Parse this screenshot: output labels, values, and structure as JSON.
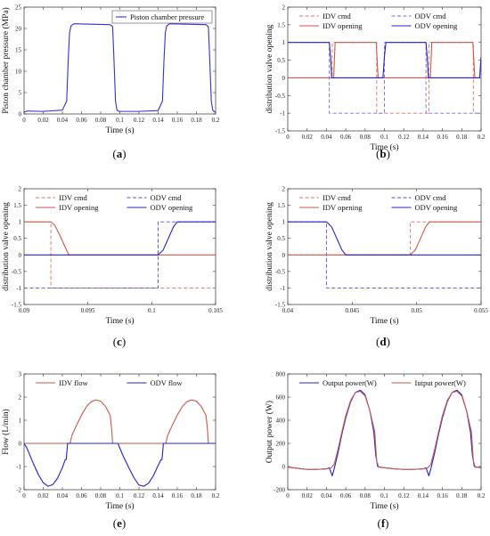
{
  "chart_data": [
    {
      "panel": "(a)",
      "type": "line",
      "xlabel": "Time (s)",
      "ylabel": "Piston chamber pressure (MPa)",
      "xlim": [
        0,
        0.2
      ],
      "ylim": [
        0,
        25
      ],
      "xticks": [
        "0",
        "0.02",
        "0.04",
        "0.06",
        "0.08",
        "0.1",
        "0.12",
        "0.14",
        "0.16",
        "0.18",
        "0.2"
      ],
      "yticks": [
        "0",
        "5",
        "10",
        "15",
        "20",
        "25"
      ],
      "legend": "top-right",
      "series": [
        {
          "name": "Piston chamber pressure",
          "color": "#3333cc",
          "style": "solid",
          "x": [
            0,
            0.003,
            0.02,
            0.04,
            0.0445,
            0.046,
            0.0475,
            0.049,
            0.052,
            0.07,
            0.09,
            0.0925,
            0.094,
            0.0955,
            0.097,
            0.099,
            0.12,
            0.14,
            0.1445,
            0.146,
            0.1475,
            0.149,
            0.152,
            0.17,
            0.19,
            0.1925,
            0.194,
            0.1955,
            0.197,
            0.2
          ],
          "y": [
            0.4,
            0.7,
            0.6,
            0.9,
            3,
            12,
            19,
            20.6,
            21.1,
            21,
            20.9,
            20.4,
            12,
            3,
            0.9,
            0.6,
            0.6,
            0.8,
            3,
            12,
            19,
            20.6,
            21.1,
            21,
            20.9,
            20.4,
            12,
            3,
            0.9,
            0.3
          ]
        }
      ]
    },
    {
      "panel": "(b)",
      "type": "line",
      "xlabel": "Time (s)",
      "ylabel": "distribution valve opening",
      "xlim": [
        0,
        0.2
      ],
      "ylim": [
        -1.5,
        2
      ],
      "xticks": [
        "0",
        "0.02",
        "0.04",
        "0.06",
        "0.08",
        "0.1",
        "0.12",
        "0.14",
        "0.16",
        "0.18",
        "0.2"
      ],
      "yticks": [
        "-1.5",
        "-1",
        "-0.5",
        "0",
        "0.5",
        "1",
        "1.5",
        "2"
      ],
      "legend": "top (2 columns)",
      "series": [
        {
          "name": "IDV cmd",
          "color": "#e0706a",
          "style": "dashed",
          "x": [
            0,
            0.046,
            0.046,
            0.092,
            0.092,
            0.146,
            0.146,
            0.192,
            0.192,
            0.2
          ],
          "y": [
            0,
            0,
            1,
            1,
            -1,
            -1,
            1,
            1,
            -1,
            -1
          ]
        },
        {
          "name": "ODV cmd",
          "color": "#7070dd",
          "style": "dashed",
          "x": [
            0,
            0.043,
            0.043,
            0.1,
            0.1,
            0.143,
            0.143,
            0.2
          ],
          "y": [
            1,
            1,
            -1,
            -1,
            1,
            1,
            -1,
            -1
          ]
        },
        {
          "name": "IDV opening",
          "color": "#cc5a4a",
          "style": "solid",
          "x": [
            0,
            0.0475,
            0.049,
            0.09,
            0.0915,
            0.0935,
            0.1475,
            0.149,
            0.19,
            0.1915,
            0.1935,
            0.2
          ],
          "y": [
            0,
            0,
            1,
            1,
            1,
            0,
            0,
            1,
            1,
            1,
            0,
            0
          ]
        },
        {
          "name": "ODV opening",
          "color": "#2222cc",
          "style": "solid",
          "x": [
            0,
            0.043,
            0.0445,
            0.0455,
            0.0985,
            0.1,
            0.1015,
            0.143,
            0.1445,
            0.1455,
            0.1985,
            0.2
          ],
          "y": [
            1,
            1,
            0.5,
            0,
            0,
            0.6,
            1,
            1,
            0.5,
            0,
            0,
            0.6
          ]
        }
      ]
    },
    {
      "panel": "(c)",
      "type": "line",
      "xlabel": "Time (s)",
      "ylabel": "distribution valve opening",
      "xlim": [
        0.09,
        0.105
      ],
      "ylim": [
        -1.5,
        2
      ],
      "xticks": [
        "0.09",
        "0.095",
        "0.1",
        "0.105"
      ],
      "yticks": [
        "-1.5",
        "-1",
        "-0.5",
        "0",
        "0.5",
        "1",
        "1.5",
        "2"
      ],
      "legend": "top (2 columns)",
      "series": [
        {
          "name": "IDV cmd",
          "color": "#e0706a",
          "style": "dashed",
          "x": [
            0.09,
            0.0921,
            0.0921,
            0.105
          ],
          "y": [
            1,
            1,
            -1,
            -1
          ]
        },
        {
          "name": "ODV cmd",
          "color": "#5050dd",
          "style": "dashed",
          "x": [
            0.09,
            0.1005,
            0.1005,
            0.105
          ],
          "y": [
            -1,
            -1,
            1,
            1
          ]
        },
        {
          "name": "IDV opening",
          "color": "#cc5a4a",
          "style": "solid",
          "x": [
            0.09,
            0.0921,
            0.0924,
            0.0928,
            0.0932,
            0.0935,
            0.105
          ],
          "y": [
            1,
            1,
            0.9,
            0.6,
            0.25,
            0,
            0
          ]
        },
        {
          "name": "ODV opening",
          "color": "#2222cc",
          "style": "solid",
          "x": [
            0.09,
            0.1005,
            0.1009,
            0.1013,
            0.1017,
            0.102,
            0.105
          ],
          "y": [
            0,
            0,
            0.15,
            0.5,
            0.85,
            1,
            1
          ]
        }
      ]
    },
    {
      "panel": "(d)",
      "type": "line",
      "xlabel": "Time (s)",
      "ylabel": "distribution valve opening",
      "xlim": [
        0.04,
        0.055
      ],
      "ylim": [
        -1.5,
        2
      ],
      "xticks": [
        "0.04",
        "0.045",
        "0.05",
        "0.055"
      ],
      "yticks": [
        "-1.5",
        "-1",
        "-0.5",
        "0",
        "0.5",
        "1",
        "1.5",
        "2"
      ],
      "legend": "top (2 columns)",
      "series": [
        {
          "name": "IDV cmd",
          "color": "#e0706a",
          "style": "dashed",
          "x": [
            0.04,
            0.0495,
            0.0495,
            0.055
          ],
          "y": [
            0,
            0,
            1,
            1
          ]
        },
        {
          "name": "ODV cmd",
          "color": "#5050dd",
          "style": "dashed",
          "x": [
            0.04,
            0.043,
            0.043,
            0.055
          ],
          "y": [
            1,
            1,
            -1,
            -1
          ]
        },
        {
          "name": "IDV opening",
          "color": "#cc5a4a",
          "style": "solid",
          "x": [
            0.04,
            0.0495,
            0.0499,
            0.0503,
            0.0507,
            0.051,
            0.055
          ],
          "y": [
            0,
            0,
            0.15,
            0.5,
            0.85,
            1,
            1
          ]
        },
        {
          "name": "ODV opening",
          "color": "#2222cc",
          "style": "solid",
          "x": [
            0.04,
            0.043,
            0.0434,
            0.0438,
            0.0442,
            0.0445,
            0.055
          ],
          "y": [
            1,
            1,
            0.85,
            0.5,
            0.15,
            0,
            0
          ]
        }
      ]
    },
    {
      "panel": "(e)",
      "type": "line",
      "xlabel": "Time (s)",
      "ylabel": "Flow (L/min)",
      "xlim": [
        0,
        0.2
      ],
      "ylim": [
        -2,
        3
      ],
      "xticks": [
        "0",
        "0.02",
        "0.04",
        "0.06",
        "0.08",
        "0.1",
        "0.12",
        "0.14",
        "0.16",
        "0.18",
        "0.2"
      ],
      "yticks": [
        "-2",
        "-1",
        "0",
        "1",
        "2",
        "3"
      ],
      "legend": "top (2 columns)",
      "series": [
        {
          "name": "IDV flow",
          "color": "#cc5a4a",
          "style": "solid",
          "x": [
            0,
            0.048,
            0.05,
            0.055,
            0.06,
            0.065,
            0.07,
            0.075,
            0.08,
            0.085,
            0.09,
            0.0915,
            0.0925,
            0.148,
            0.15,
            0.155,
            0.16,
            0.165,
            0.17,
            0.175,
            0.18,
            0.185,
            0.19,
            0.1915,
            0.1925,
            0.2
          ],
          "y": [
            0,
            0,
            0.35,
            0.8,
            1.22,
            1.58,
            1.8,
            1.88,
            1.82,
            1.6,
            1.2,
            0.6,
            0,
            0,
            0.35,
            0.8,
            1.22,
            1.58,
            1.8,
            1.88,
            1.82,
            1.6,
            1.2,
            0.6,
            0,
            0
          ]
        },
        {
          "name": "ODV flow",
          "color": "#2222cc",
          "style": "solid",
          "x": [
            0,
            0.003,
            0.01,
            0.015,
            0.02,
            0.025,
            0.03,
            0.035,
            0.04,
            0.043,
            0.044,
            0.0455,
            0.098,
            0.1,
            0.103,
            0.11,
            0.115,
            0.12,
            0.125,
            0.13,
            0.135,
            0.14,
            0.143,
            0.144,
            0.1455,
            0.2
          ],
          "y": [
            0,
            -0.2,
            -0.9,
            -1.35,
            -1.7,
            -1.85,
            -1.78,
            -1.5,
            -1.05,
            -0.7,
            -0.7,
            0,
            0,
            -0.2,
            -0.5,
            -1.1,
            -1.5,
            -1.8,
            -1.85,
            -1.72,
            -1.4,
            -0.95,
            -0.7,
            -0.7,
            0,
            0
          ]
        }
      ]
    },
    {
      "panel": "(f)",
      "type": "line",
      "xlabel": "Time (s)",
      "ylabel": "Output power (W)",
      "xlim": [
        0,
        0.2
      ],
      "ylim": [
        -200,
        800
      ],
      "xticks": [
        "0",
        "0.02",
        "0.04",
        "0.06",
        "0.08",
        "0.1",
        "0.12",
        "0.14",
        "0.16",
        "0.18",
        "0.2"
      ],
      "yticks": [
        "-200",
        "0",
        "200",
        "400",
        "600",
        "800"
      ],
      "legend": "top (2 columns)",
      "series": [
        {
          "name": "Output power(W)",
          "color": "#2222cc",
          "style": "solid",
          "x": [
            0,
            0.01,
            0.02,
            0.03,
            0.04,
            0.043,
            0.046,
            0.048,
            0.052,
            0.056,
            0.06,
            0.065,
            0.07,
            0.075,
            0.08,
            0.085,
            0.089,
            0.091,
            0.093,
            0.096,
            0.1,
            0.11,
            0.12,
            0.13,
            0.14,
            0.143,
            0.146,
            0.148,
            0.152,
            0.156,
            0.16,
            0.165,
            0.17,
            0.175,
            0.18,
            0.185,
            0.189,
            0.191,
            0.193,
            0.196,
            0.2
          ],
          "y": [
            -5,
            -15,
            -25,
            -25,
            -20,
            -10,
            -80,
            -20,
            120,
            280,
            420,
            560,
            640,
            660,
            620,
            480,
            300,
            100,
            0,
            -5,
            -10,
            -20,
            -25,
            -25,
            -20,
            -10,
            -80,
            -20,
            120,
            280,
            420,
            560,
            640,
            660,
            620,
            480,
            300,
            100,
            0,
            -5,
            -10
          ]
        },
        {
          "name": "Iutput power(W)",
          "color": "#cc5a4a",
          "style": "solid",
          "x": [
            0,
            0.01,
            0.02,
            0.03,
            0.04,
            0.045,
            0.048,
            0.052,
            0.056,
            0.06,
            0.065,
            0.07,
            0.075,
            0.08,
            0.085,
            0.09,
            0.092,
            0.094,
            0.1,
            0.11,
            0.12,
            0.13,
            0.14,
            0.145,
            0.148,
            0.152,
            0.156,
            0.16,
            0.165,
            0.17,
            0.175,
            0.18,
            0.185,
            0.19,
            0.192,
            0.194,
            0.2
          ],
          "y": [
            -5,
            -15,
            -25,
            -25,
            -20,
            -10,
            20,
            150,
            300,
            440,
            570,
            640,
            650,
            610,
            480,
            300,
            50,
            -5,
            -10,
            -20,
            -25,
            -25,
            -20,
            -10,
            20,
            150,
            300,
            440,
            570,
            640,
            650,
            610,
            480,
            300,
            50,
            -5,
            -10
          ]
        }
      ]
    }
  ]
}
